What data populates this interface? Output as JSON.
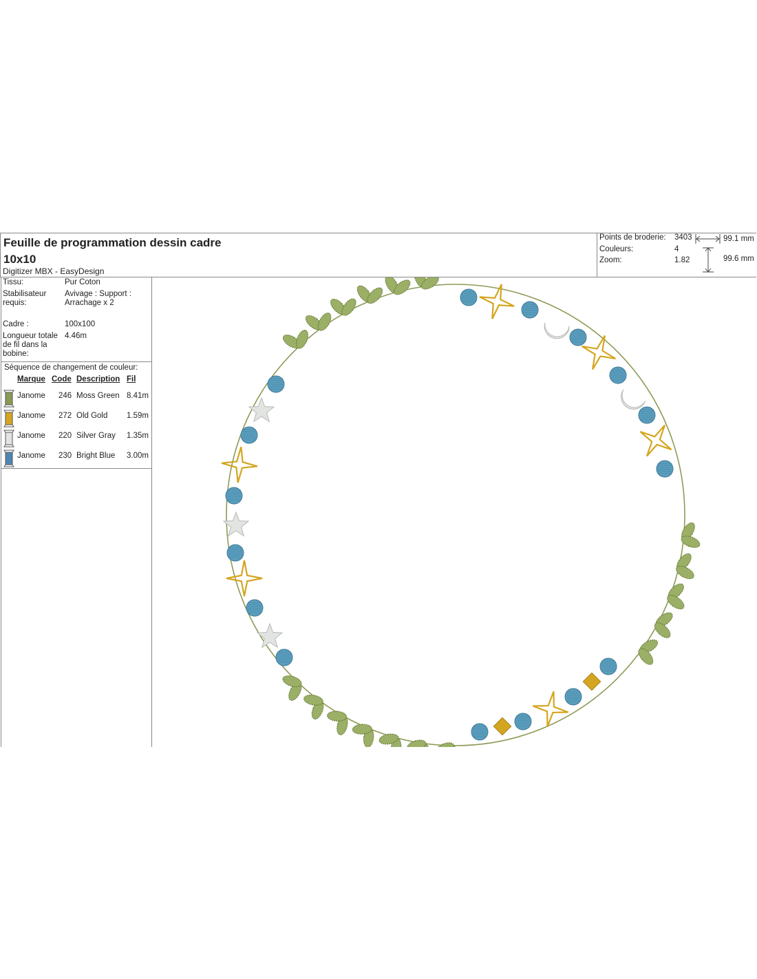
{
  "header": {
    "title": "Feuille de programmation dessin cadre 10x10",
    "subtitle": "Digitizer MBX - EasyDesign"
  },
  "stats": {
    "stitches_label": "Points de broderie:",
    "stitches": "3403",
    "colors_label": "Couleurs:",
    "colors": "4",
    "zoom_label": "Zoom:",
    "zoom": "1.82",
    "width": "99.1 mm",
    "height": "99.6 mm"
  },
  "info": {
    "fabric_label": "Tissu:",
    "fabric": "Pur Coton",
    "stabilizer_label": "Stabilisateur requis:",
    "stabilizer": "Avivage : Support : Arrachage x 2",
    "frame_label": "Cadre :",
    "frame": "100x100",
    "bobbin_label": "Longueur totale de fil dans la bobine:",
    "bobbin": "4.46m"
  },
  "colors": {
    "title": "Séquence de changement de couleur:",
    "headers": {
      "brand": "Marque",
      "code": "Code",
      "description": "Description",
      "thread": "Fil"
    },
    "rows": [
      {
        "brand": "Janome",
        "code": "246",
        "description": "Moss Green",
        "thread": "8.41m",
        "color": "#8a9a55"
      },
      {
        "brand": "Janome",
        "code": "272",
        "description": "Old Gold",
        "thread": "1.59m",
        "color": "#d4a520"
      },
      {
        "brand": "Janome",
        "code": "220",
        "description": "Silver Gray",
        "thread": "1.35m",
        "color": "#e2e4e2"
      },
      {
        "brand": "Janome",
        "code": "230",
        "description": "Bright Blue",
        "thread": "3.00m",
        "color": "#4f86b0"
      }
    ]
  }
}
